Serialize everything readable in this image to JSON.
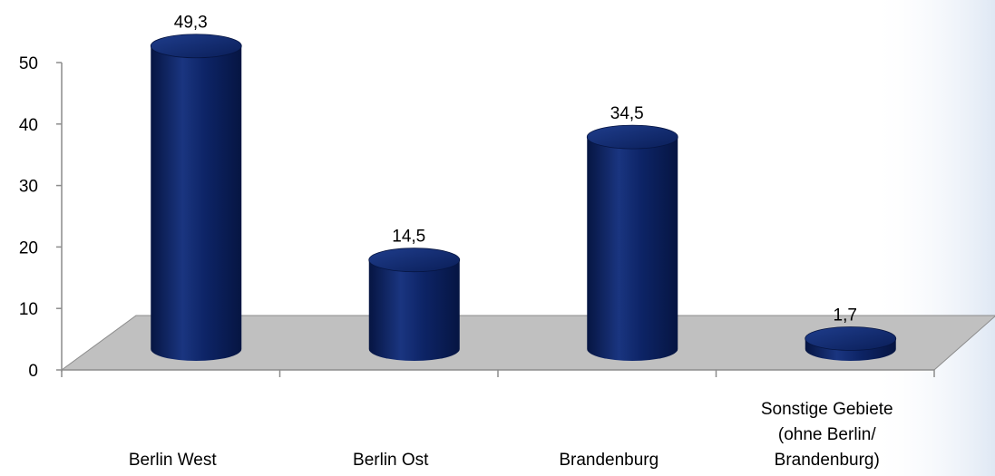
{
  "chart_data": {
    "type": "bar",
    "categories": [
      [
        "Berlin West"
      ],
      [
        "Berlin Ost"
      ],
      [
        "Brandenburg"
      ],
      [
        "Sonstige Gebiete",
        "(ohne Berlin/",
        "Brandenburg)"
      ]
    ],
    "values": [
      49.3,
      14.5,
      34.5,
      1.7
    ],
    "data_labels": [
      "49,3",
      "14,5",
      "34,5",
      "1,7"
    ],
    "y_ticks": [
      "0",
      "10",
      "20",
      "30",
      "40",
      "50"
    ],
    "ylim": [
      0,
      50
    ],
    "grid": false,
    "legend": "none",
    "bar_style": "3d-cylinder",
    "colors": {
      "bar": "#0d2466",
      "bar_dark": "#061542",
      "bar_light": "#2a4a9c",
      "floor": "#c0c0c0",
      "floor_edge": "#8c8c8c",
      "axis": "#8c8c8c",
      "bg_right": "#dfe8f4"
    }
  }
}
